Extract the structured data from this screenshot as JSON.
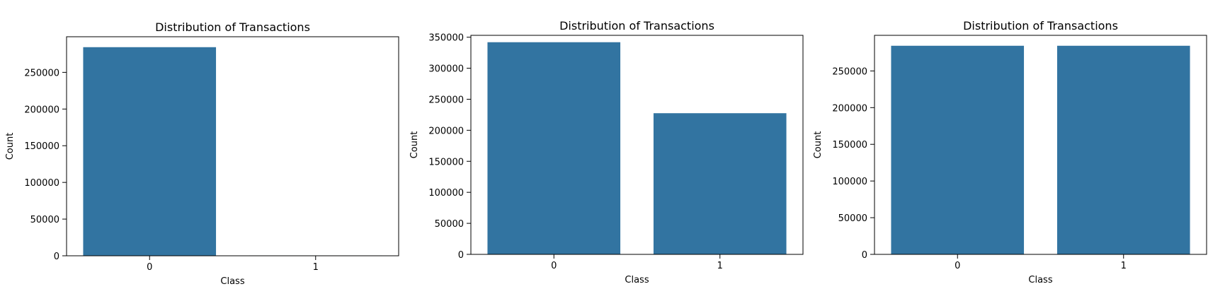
{
  "chart_data": [
    {
      "type": "bar",
      "title": "Distribution of Transactions",
      "xlabel": "Class",
      "ylabel": "Count",
      "categories": [
        "0",
        "1"
      ],
      "values": [
        284315,
        492
      ],
      "ylim": [
        0,
        298531
      ],
      "yticks": [
        0,
        50000,
        100000,
        150000,
        200000,
        250000
      ],
      "grid": false,
      "bar_color": "#3274a1"
    },
    {
      "type": "bar",
      "title": "Distribution of Transactions",
      "xlabel": "Class",
      "ylabel": "Count",
      "categories": [
        "0",
        "1"
      ],
      "values": [
        341900,
        227500
      ],
      "ylim": [
        0,
        353000
      ],
      "yticks": [
        0,
        50000,
        100000,
        150000,
        200000,
        250000,
        300000,
        350000
      ],
      "grid": false,
      "bar_color": "#3274a1"
    },
    {
      "type": "bar",
      "title": "Distribution of Transactions",
      "xlabel": "Class",
      "ylabel": "Count",
      "categories": [
        "0",
        "1"
      ],
      "values": [
        284315,
        284315
      ],
      "ylim": [
        0,
        298531
      ],
      "yticks": [
        0,
        50000,
        100000,
        150000,
        200000,
        250000
      ],
      "grid": false,
      "bar_color": "#3274a1"
    }
  ]
}
